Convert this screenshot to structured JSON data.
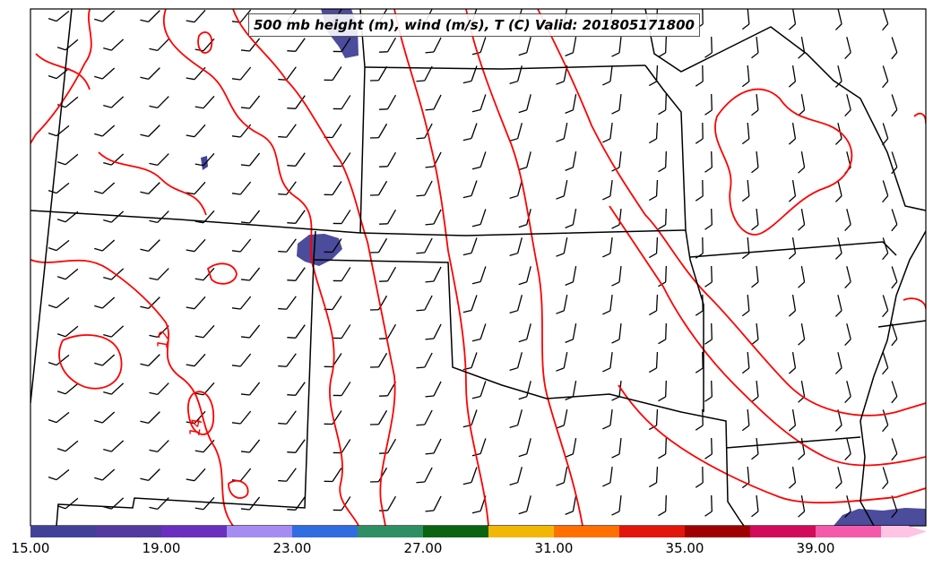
{
  "title": "500 mb height (m), wind (m/s), T (C) Valid: 201805171800",
  "contour_labels": [
    "12",
    "14"
  ],
  "contour_color": "#ff0000",
  "colorbar": {
    "colors": [
      "#414297",
      "#523a9f",
      "#6a2fbf",
      "#a48cf2",
      "#2f6de0",
      "#2e8f64",
      "#0a6410",
      "#f2b705",
      "#ff7000",
      "#e2160a",
      "#9f0000",
      "#d20a5a",
      "#f45aac",
      "#ffc3e4"
    ],
    "tick_labels": [
      "15.00",
      "19.00",
      "23.00",
      "27.00",
      "31.00",
      "35.00",
      "39.00"
    ]
  },
  "icons": {
    "wind": "wind-barb-icon"
  }
}
